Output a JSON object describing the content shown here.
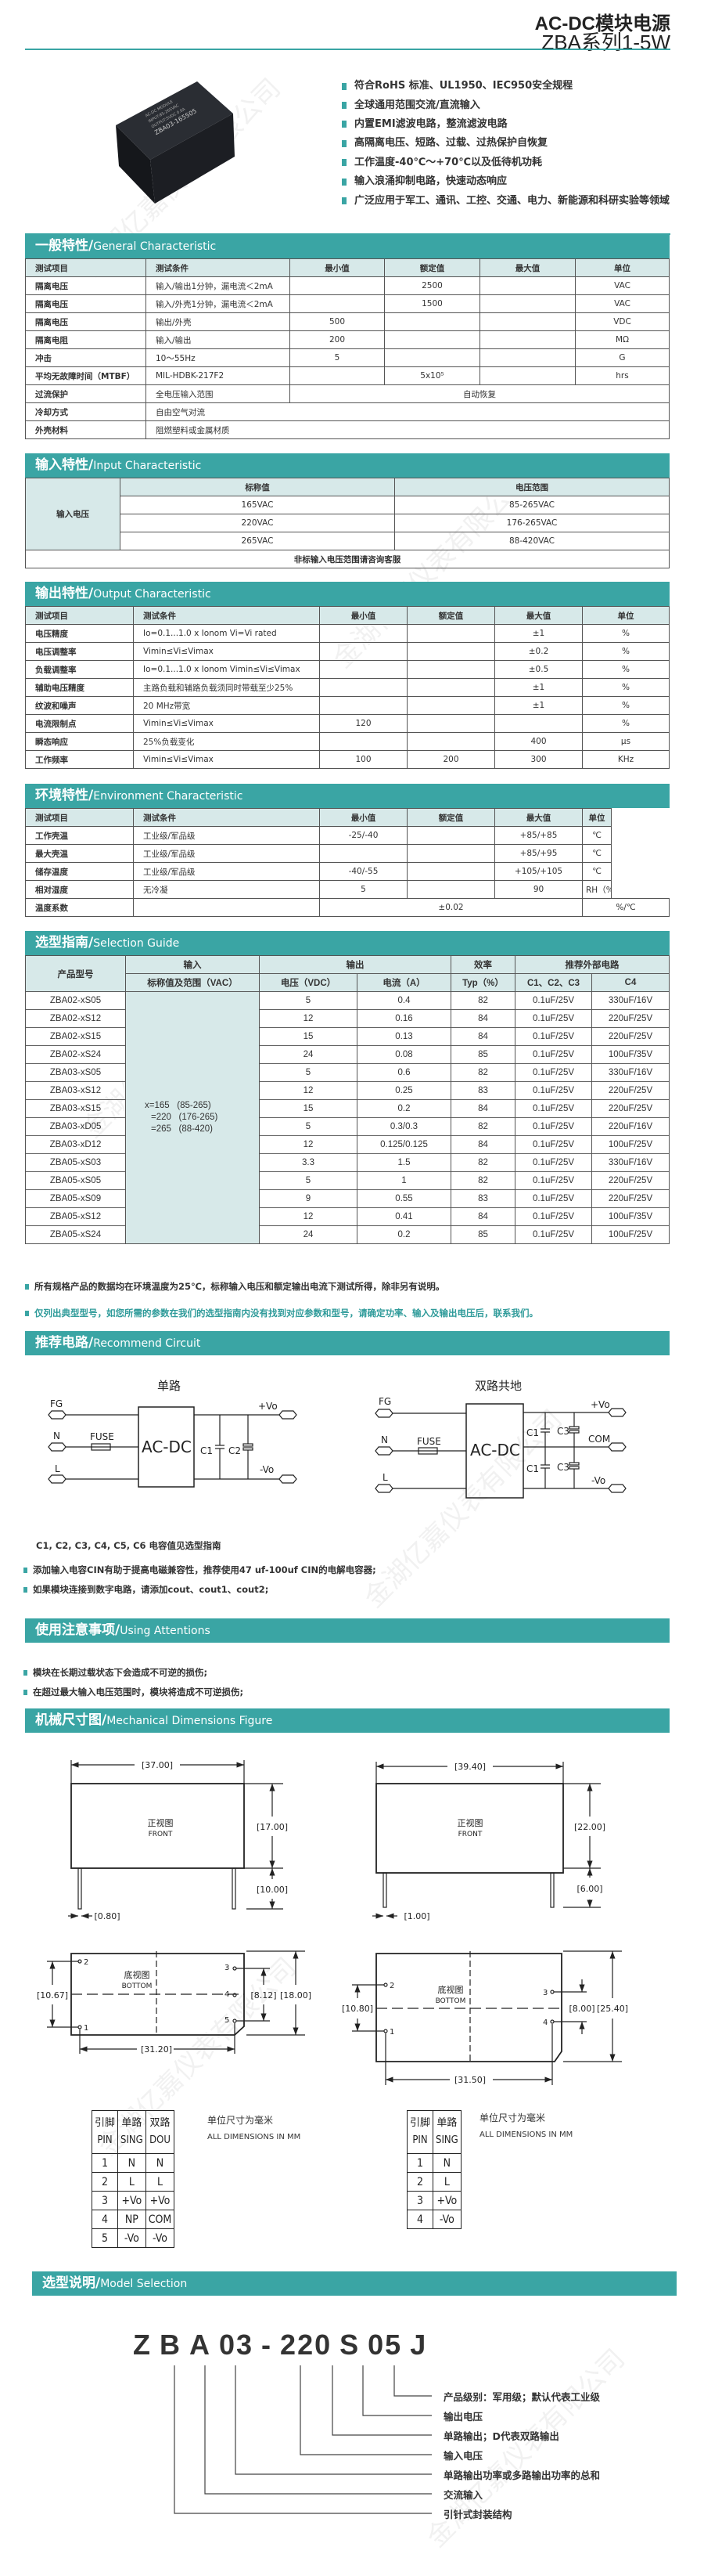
{
  "header": {
    "title": "AC-DC模块电源",
    "subtitle": "ZBA系列1-5W"
  },
  "product_image": {
    "label_lines": [
      "AC-DC MODULE",
      "INPUT:85-265VAC",
      "OUTPUT:5VDC 0.6A",
      "ZBA03-165S05"
    ]
  },
  "features": [
    "符合RoHS 标准、UL1950、IEC950安全规程",
    "全球通用范围交流/直流输入",
    "内置EMI滤波电路，整流滤波电路",
    "高隔离电压、短路、过载、过热保护自恢复",
    "工作温度-40℃～+70℃以及低待机功耗",
    "输入浪涌抑制电路，快速动态响应",
    "广泛应用于军工、通讯、工控、交通、电力、新能源和科研实验等领域"
  ],
  "general": {
    "title_cn": "一般特性/",
    "title_en": "General Characteristic",
    "rows": [
      [
        "测试项目",
        "测试条件",
        "最小值",
        "额定值",
        "最大值",
        "单位"
      ],
      [
        "隔离电压",
        "输入/输出1分钟，漏电流＜2mA",
        "",
        "2500",
        "",
        "VAC"
      ],
      [
        "隔离电压",
        "输入/外壳1分钟，漏电流＜2mA",
        "",
        "1500",
        "",
        "VAC"
      ],
      [
        "隔离电压",
        "输出/外壳",
        "500",
        "",
        "",
        "VDC"
      ],
      [
        "隔离电阻",
        "输入/输出",
        "200",
        "",
        "",
        "MΩ"
      ],
      [
        "冲击",
        "10～55Hz",
        "5",
        "",
        "",
        "G"
      ],
      [
        "平均无故障时间（MTBF）",
        "MIL-HDBK-217F2",
        "",
        "5x10⁵",
        "",
        "hrs"
      ],
      [
        "过流保护",
        "全电压输入范围",
        "自动恢复"
      ],
      [
        "冷却方式",
        "自由空气对流"
      ],
      [
        "外壳材料",
        "阻燃塑料或金属材质"
      ]
    ]
  },
  "input": {
    "title_cn": "输入特性/",
    "title_en": "Input Characteristic",
    "row_label": "输入电压",
    "headers": [
      "标称值",
      "电压范围"
    ],
    "rows": [
      [
        "165VAC",
        "85-265VAC"
      ],
      [
        "220VAC",
        "176-265VAC"
      ],
      [
        "265VAC",
        "88-420VAC"
      ]
    ],
    "footer": "非标输入电压范围请咨询客服"
  },
  "output": {
    "title_cn": "输出特性/",
    "title_en": "Output Characteristic",
    "rows": [
      [
        "测试项目",
        "测试条件",
        "最小值",
        "额定值",
        "最大值",
        "单位"
      ],
      [
        "电压精度",
        "Io=0.1...1.0 x Ionom Vi=Vi rated",
        "",
        "",
        "±1",
        "%"
      ],
      [
        "电压调整率",
        "Vimin≤Vi≤Vimax",
        "",
        "",
        "±0.2",
        "%"
      ],
      [
        "负载调整率",
        "Io=0.1...1.0 x Ionom Vimin≤Vi≤Vimax",
        "",
        "",
        "±0.5",
        "%"
      ],
      [
        "辅助电压精度",
        "主路负载和辅路负载须同时带载至少25%",
        "",
        "",
        "±1",
        "%"
      ],
      [
        "纹波和噪声",
        "20 MHz带宽",
        "",
        "",
        "±1",
        "%"
      ],
      [
        "电流限制点",
        "Vimin≤Vi≤Vimax",
        "120",
        "",
        "",
        "%"
      ],
      [
        "瞬态响应",
        "25%负载变化",
        "",
        "",
        "400",
        "μs"
      ],
      [
        "工作频率",
        "Vimin≤Vi≤Vimax",
        "100",
        "200",
        "300",
        "KHz"
      ]
    ]
  },
  "environment": {
    "title_cn": "环境特性/",
    "title_en": "Environment Characteristic",
    "rows": [
      [
        "测试项目",
        "测试条件",
        "最小值",
        "额定值",
        "最大值",
        "单位"
      ],
      [
        "工作壳温",
        "工业级/军品级",
        "-25/-40",
        "",
        "+85/+85",
        "℃"
      ],
      [
        "最大壳温",
        "工业级/军品级",
        "",
        "",
        "+85/+95",
        "℃"
      ],
      [
        "储存温度",
        "工业级/军品级",
        "-40/-55",
        "",
        "+105/+105",
        "℃"
      ],
      [
        "相对湿度",
        "无冷凝",
        "5",
        "",
        "90",
        "RH（%）"
      ],
      [
        "温度系数",
        "",
        "±0.02",
        "%/℃"
      ]
    ]
  },
  "selection": {
    "title_cn": "选型指南/",
    "title_en": "Selection Guide",
    "h_model": "产品型号",
    "h_input": "输入",
    "h_output": "输出",
    "h_eff": "效率",
    "h_ext": "推荐外部电路",
    "h_input_sub": "标称值及范围（VAC）",
    "h_voltage": "电压（VDC）",
    "h_current": "电流（A）",
    "h_typ": "Typ（%）",
    "h_c123": "C1、C2、C3",
    "h_c4": "C4",
    "input_lines": [
      "x=165   (85-265)",
      "=220   (176-265)",
      "=265   (88-420)"
    ],
    "rows": [
      [
        "ZBA02-xS05",
        "5",
        "0.4",
        "82",
        "0.1uF/25V",
        "330uF/16V"
      ],
      [
        "ZBA02-xS12",
        "12",
        "0.16",
        "84",
        "0.1uF/25V",
        "220uF/25V"
      ],
      [
        "ZBA02-xS15",
        "15",
        "0.13",
        "84",
        "0.1uF/25V",
        "220uF/25V"
      ],
      [
        "ZBA02-xS24",
        "24",
        "0.08",
        "85",
        "0.1uF/25V",
        "100uF/35V"
      ],
      [
        "ZBA03-xS05",
        "5",
        "0.6",
        "82",
        "0.1uF/25V",
        "330uF/16V"
      ],
      [
        "ZBA03-xS12",
        "12",
        "0.25",
        "83",
        "0.1uF/25V",
        "220uF/25V"
      ],
      [
        "ZBA03-xS15",
        "15",
        "0.2",
        "84",
        "0.1uF/25V",
        "220uF/25V"
      ],
      [
        "ZBA03-xD05",
        "5",
        "0.3/0.3",
        "82",
        "0.1uF/25V",
        "220uF/16V"
      ],
      [
        "ZBA03-xD12",
        "12",
        "0.125/0.125",
        "84",
        "0.1uF/25V",
        "100uF/25V"
      ],
      [
        "ZBA05-xS03",
        "3.3",
        "1.5",
        "82",
        "0.1uF/25V",
        "330uF/16V"
      ],
      [
        "ZBA05-xS05",
        "5",
        "1",
        "82",
        "0.1uF/25V",
        "220uF/25V"
      ],
      [
        "ZBA05-xS09",
        "9",
        "0.55",
        "83",
        "0.1uF/25V",
        "220uF/25V"
      ],
      [
        "ZBA05-xS12",
        "12",
        "0.41",
        "84",
        "0.1uF/25V",
        "100uF/35V"
      ],
      [
        "ZBA05-xS24",
        "24",
        "0.2",
        "85",
        "0.1uF/25V",
        "100uF/25V"
      ]
    ]
  },
  "notes": [
    "所有规格产品的数据均在环境温度为25℃，标称输入电压和额定输出电流下测试所得，除非另有说明。",
    "仅列出典型型号，如您所需的参数在我们的选型指南内没有找到对应参数和型号，请确定功率、输入及输出电压后，联系我们。"
  ],
  "circuit": {
    "title_cn": "推荐电路/",
    "title_en": "Recommend Circuit",
    "single_title": "单路",
    "dual_title": "双路共地",
    "fg": "FG",
    "n": "N",
    "l": "L",
    "fuse": "FUSE",
    "box": "AC-DC",
    "vo_plus": "+Vo",
    "vo_minus": "-Vo",
    "com": "COM",
    "c1": "C1",
    "c2": "C2",
    "c3": "C3",
    "caption": "C1, C2, C3, C4, C5, C6 电容值见选型指南",
    "bullets": [
      "添加输入电容CIN有助于提高电磁兼容性，推荐使用47 uf-100uf CIN的电解电容器;",
      "如果模块连接到数字电路，请添加cout、cout1、cout2;"
    ]
  },
  "attentions": {
    "title_cn": "使用注意事项/",
    "title_en": "Using Attentions",
    "items": [
      "模块在长期过载状态下会造成不可逆的损伤;",
      "在超过最大输入电压范围时，模块将造成不可逆损伤;"
    ]
  },
  "mechanical": {
    "title_cn": "机械尺寸图/",
    "title_en": "Mechanical Dimensions Figure",
    "front_cn": "正视图",
    "front_en": "FRONT",
    "bottom_cn": "底视图",
    "bottom_en": "BOTTOM",
    "left": {
      "width": "[37.00]",
      "height": "[17.00]",
      "pin_len": "[10.00]",
      "pin_dia": "[0.80]",
      "h1": "[10.67]",
      "h2": "[8.12]",
      "h3": "[18.00]",
      "w2": "[31.20]"
    },
    "right": {
      "width": "[39.40]",
      "height": "[22.00]",
      "pin_len": "[6.00]",
      "pin_dia": "[1.00]",
      "h1": "[10.80]",
      "h2": "[8.00]",
      "h3": "[25.40]",
      "w2": "[31.50]"
    },
    "unit_cn": "单位尺寸为毫米",
    "unit_en": "ALL DIMENSIONS IN MM",
    "pins_left": {
      "header": [
        [
          "引脚",
          "PIN"
        ],
        [
          "单路",
          "SING"
        ],
        [
          "双路",
          "DOU"
        ]
      ],
      "rows": [
        [
          "1",
          "N",
          "N"
        ],
        [
          "2",
          "L",
          "L"
        ],
        [
          "3",
          "+Vo",
          "+Vo"
        ],
        [
          "4",
          "NP",
          "COM"
        ],
        [
          "5",
          "-Vo",
          "-Vo"
        ]
      ]
    },
    "pins_right": {
      "header": [
        [
          "引脚",
          "PIN"
        ],
        [
          "单路",
          "SING"
        ]
      ],
      "rows": [
        [
          "1",
          "N"
        ],
        [
          "2",
          "L"
        ],
        [
          "3",
          "+Vo"
        ],
        [
          "4",
          "-Vo"
        ]
      ]
    }
  },
  "model": {
    "title_cn": "选型说明/",
    "title_en": "Model Selection",
    "code": [
      "Z",
      "B",
      "A",
      "03",
      "-",
      "220",
      "S",
      "05",
      "J"
    ],
    "labels": [
      "产品级别：军用级；默认代表工业级",
      "输出电压",
      "单路输出；D代表双路输出",
      "输入电压",
      "单路输出功率或多路输出功率的总和",
      "交流输入",
      "引针式封装结构"
    ]
  },
  "watermark": "金湖亿嘉仪表有限公司",
  "colors": {
    "accent": "#3aa5a4",
    "header_row": "#d7e9e9"
  }
}
